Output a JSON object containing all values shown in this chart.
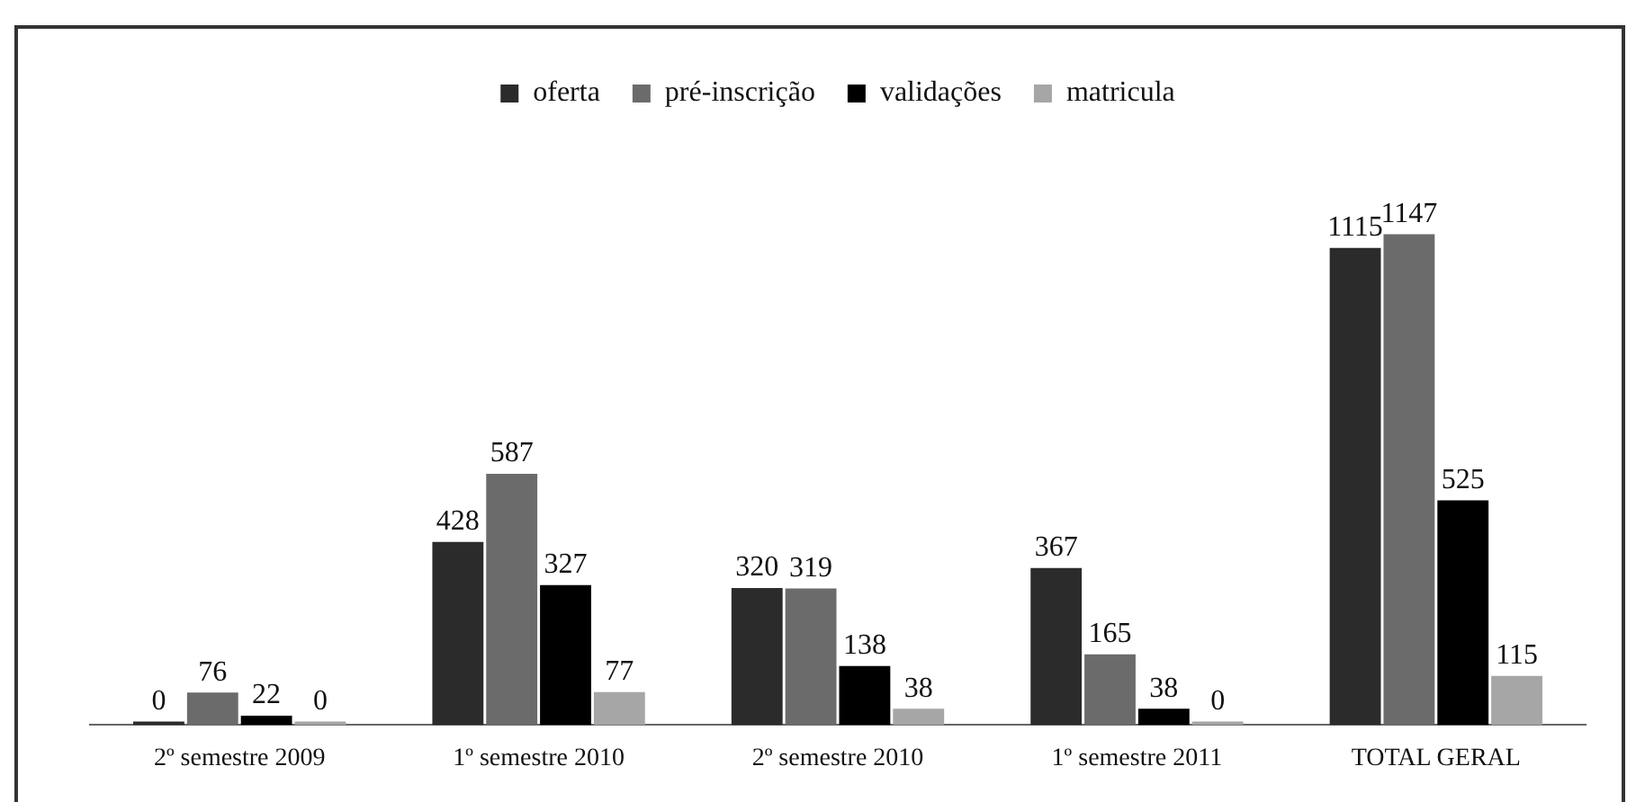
{
  "chart_data": {
    "type": "bar",
    "categories": [
      "2º semestre 2009",
      "1º semestre 2010",
      "2º semestre 2010",
      "1º semestre 2011",
      "TOTAL GERAL"
    ],
    "series": [
      {
        "name": "oferta",
        "color": "#2b2b2b",
        "values": [
          0,
          428,
          320,
          367,
          1115
        ]
      },
      {
        "name": "pré-inscrição",
        "color": "#6b6b6b",
        "values": [
          76,
          587,
          319,
          165,
          1147
        ]
      },
      {
        "name": "validações",
        "color": "#000000",
        "values": [
          22,
          327,
          138,
          38,
          525
        ]
      },
      {
        "name": "matricula",
        "color": "#a6a6a6",
        "values": [
          0,
          77,
          38,
          0,
          115
        ]
      }
    ],
    "data_labels": true,
    "legend": "top",
    "grid": false
  }
}
